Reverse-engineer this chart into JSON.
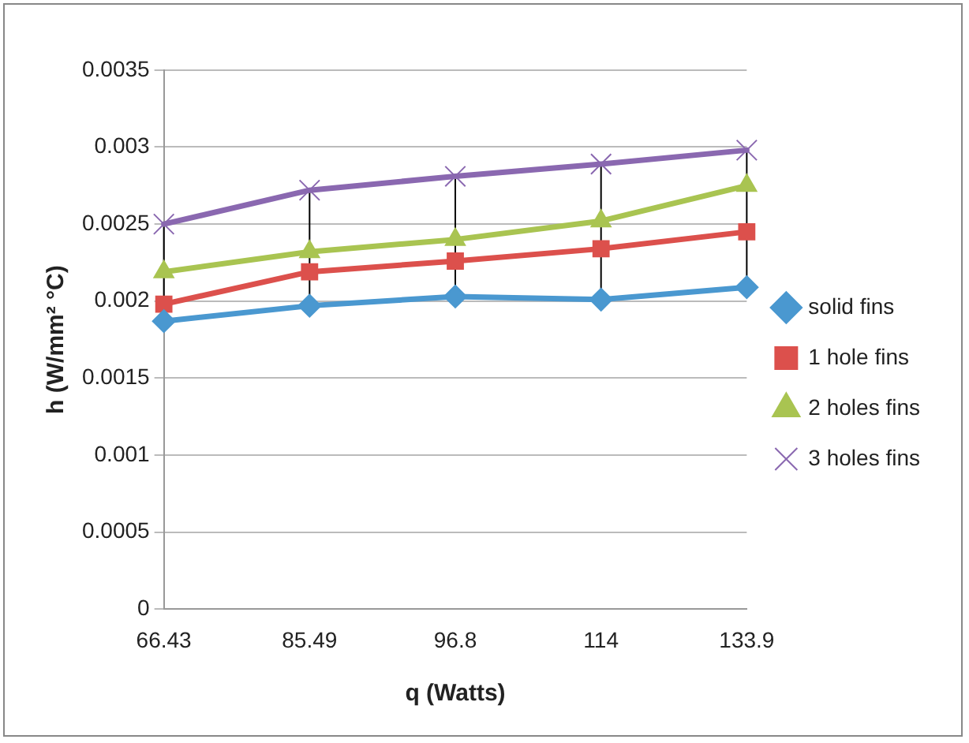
{
  "chart_data": {
    "type": "line",
    "xlabel": "q (Watts)",
    "ylabel": "h (W/mm² °C)",
    "categories": [
      "66.43",
      "85.49",
      "96.8",
      "114",
      "133.9"
    ],
    "series": [
      {
        "name": "solid fins",
        "color": "#4a98d0",
        "marker": "diamond",
        "values": [
          0.00187,
          0.00197,
          0.00203,
          0.00201,
          0.00209
        ],
        "errors": [
          [
            0.00187,
            0.0025
          ],
          [
            0.00197,
            0.00272
          ],
          [
            0.00203,
            0.00281
          ],
          [
            0.00201,
            0.00289
          ],
          [
            0.00209,
            0.00298
          ]
        ]
      },
      {
        "name": "1 hole fins",
        "color": "#dc504c",
        "marker": "square",
        "values": [
          0.00198,
          0.00219,
          0.00226,
          0.00234,
          0.00245
        ]
      },
      {
        "name": "2 holes fins",
        "color": "#a9c451",
        "marker": "triangle",
        "values": [
          0.00219,
          0.00232,
          0.0024,
          0.00252,
          0.00275
        ]
      },
      {
        "name": "3 holes fins",
        "color": "#8a68b0",
        "marker": "cross",
        "values": [
          0.0025,
          0.00272,
          0.00281,
          0.00289,
          0.00298
        ]
      }
    ],
    "ylim": [
      0,
      0.0035
    ],
    "yticks": [
      0,
      0.0005,
      0.001,
      0.0015,
      0.002,
      0.0025,
      0.003,
      0.0035
    ],
    "grid": "y",
    "legend": "right",
    "line_style": "solid"
  }
}
